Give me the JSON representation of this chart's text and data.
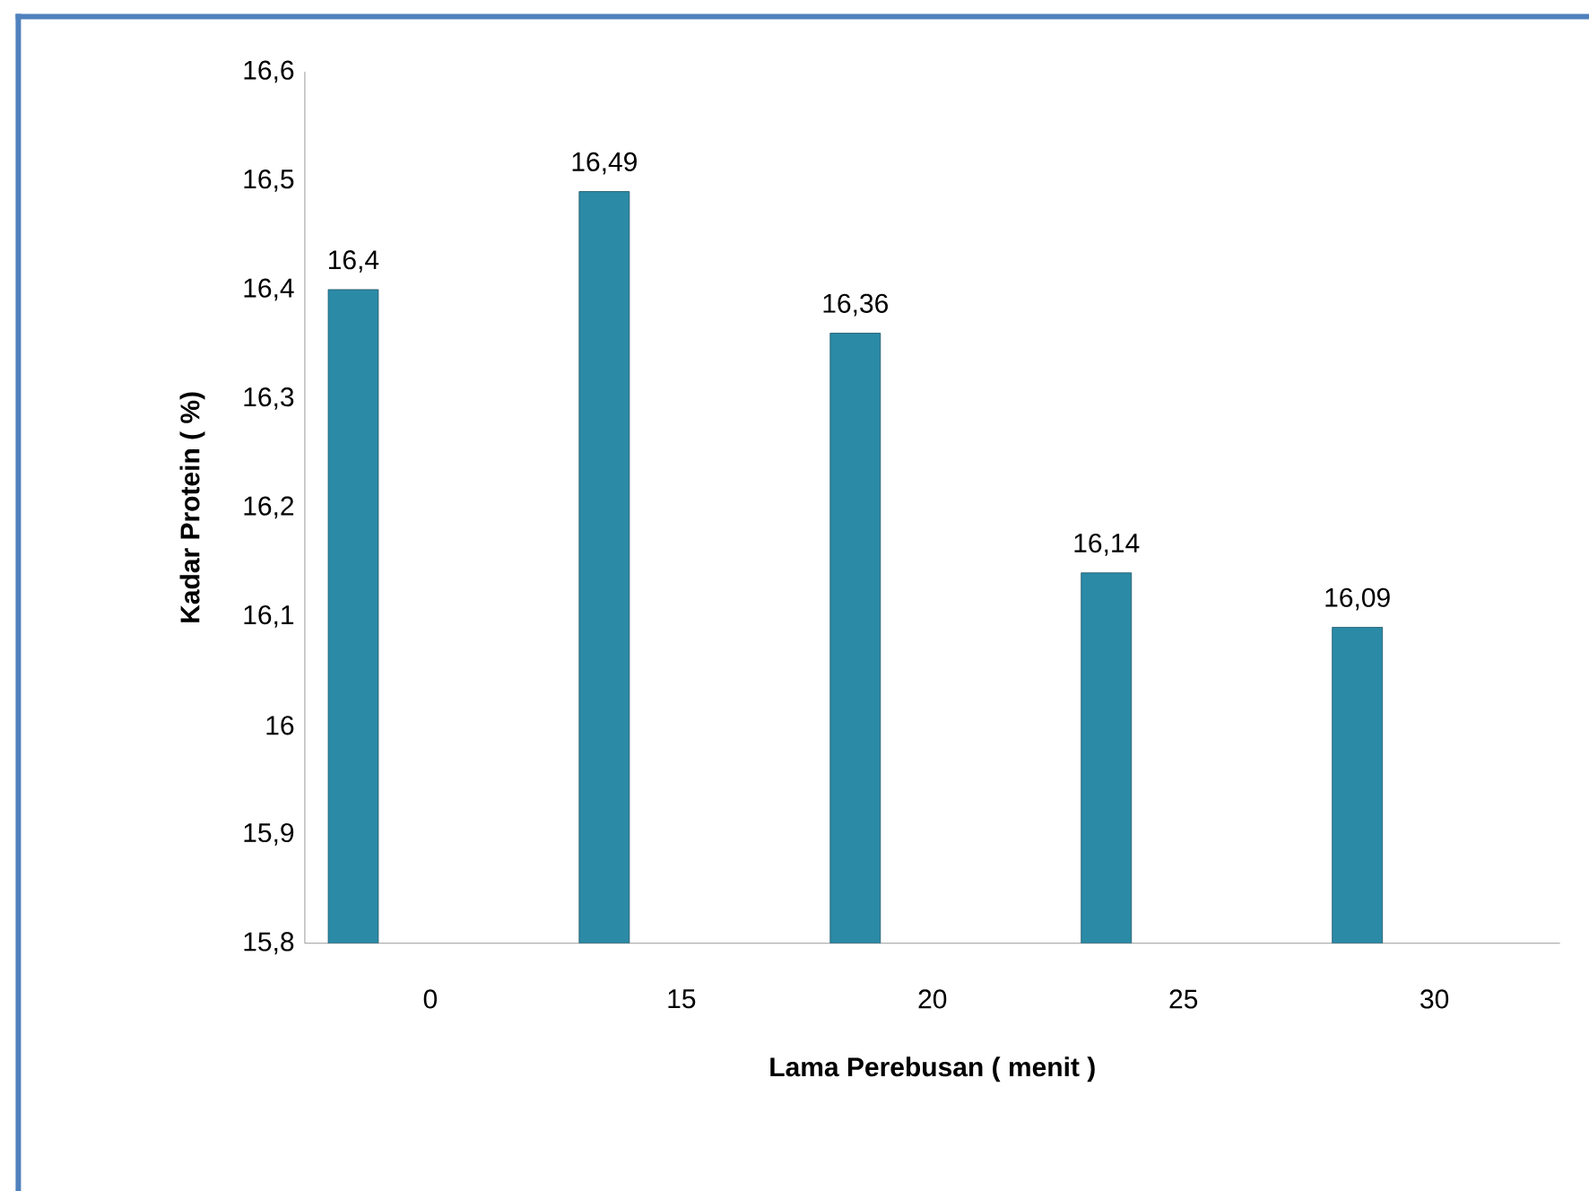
{
  "chart_data": {
    "type": "bar",
    "xlabel": "Lama Perebusan ( menit )",
    "ylabel": "Kadar Protein ( %)",
    "categories": [
      "0",
      "15",
      "20",
      "25",
      "30"
    ],
    "values": [
      16.4,
      16.49,
      16.36,
      16.14,
      16.09
    ],
    "value_labels": [
      "16,4",
      "16,49",
      "16,36",
      "16,14",
      "16,09"
    ],
    "color": "#2b8aa6",
    "ylim": [
      15.8,
      16.6
    ],
    "yticks": [
      {
        "value": 15.8,
        "label": "15,8"
      },
      {
        "value": 15.9,
        "label": "15,9"
      },
      {
        "value": 16,
        "label": "16"
      },
      {
        "value": 16.1,
        "label": "16,1"
      },
      {
        "value": 16.2,
        "label": "16,2"
      },
      {
        "value": 16.3,
        "label": "16,3"
      },
      {
        "value": 16.4,
        "label": "16,4"
      },
      {
        "value": 16.5,
        "label": "16,5"
      },
      {
        "value": 16.6,
        "label": "16,6"
      }
    ],
    "grid": false
  }
}
